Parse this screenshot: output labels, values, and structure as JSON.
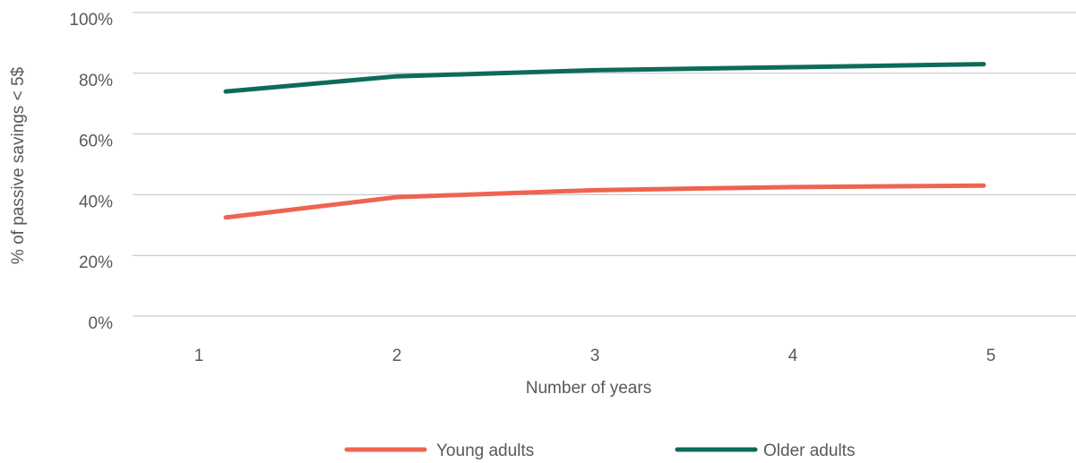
{
  "chart_data": {
    "type": "line",
    "categories": [
      "1",
      "2",
      "3",
      "4",
      "5"
    ],
    "xlabel": "Number of years",
    "ylabel": "% of passive savings < 5$",
    "ylim": [
      0,
      100
    ],
    "yticks": [
      "0%",
      "20%",
      "40%",
      "60%",
      "80%",
      "100%"
    ],
    "ytick_values": [
      0,
      20,
      40,
      60,
      80,
      100
    ],
    "grid": true,
    "legend_position": "bottom",
    "series": [
      {
        "name": "Young adults",
        "color": "#ef6351",
        "values": [
          32.5,
          39.2,
          41.5,
          42.5,
          43.0
        ]
      },
      {
        "name": "Older adults",
        "color": "#0d6b5a",
        "values": [
          74.0,
          79.0,
          81.0,
          82.0,
          83.0
        ]
      }
    ]
  }
}
